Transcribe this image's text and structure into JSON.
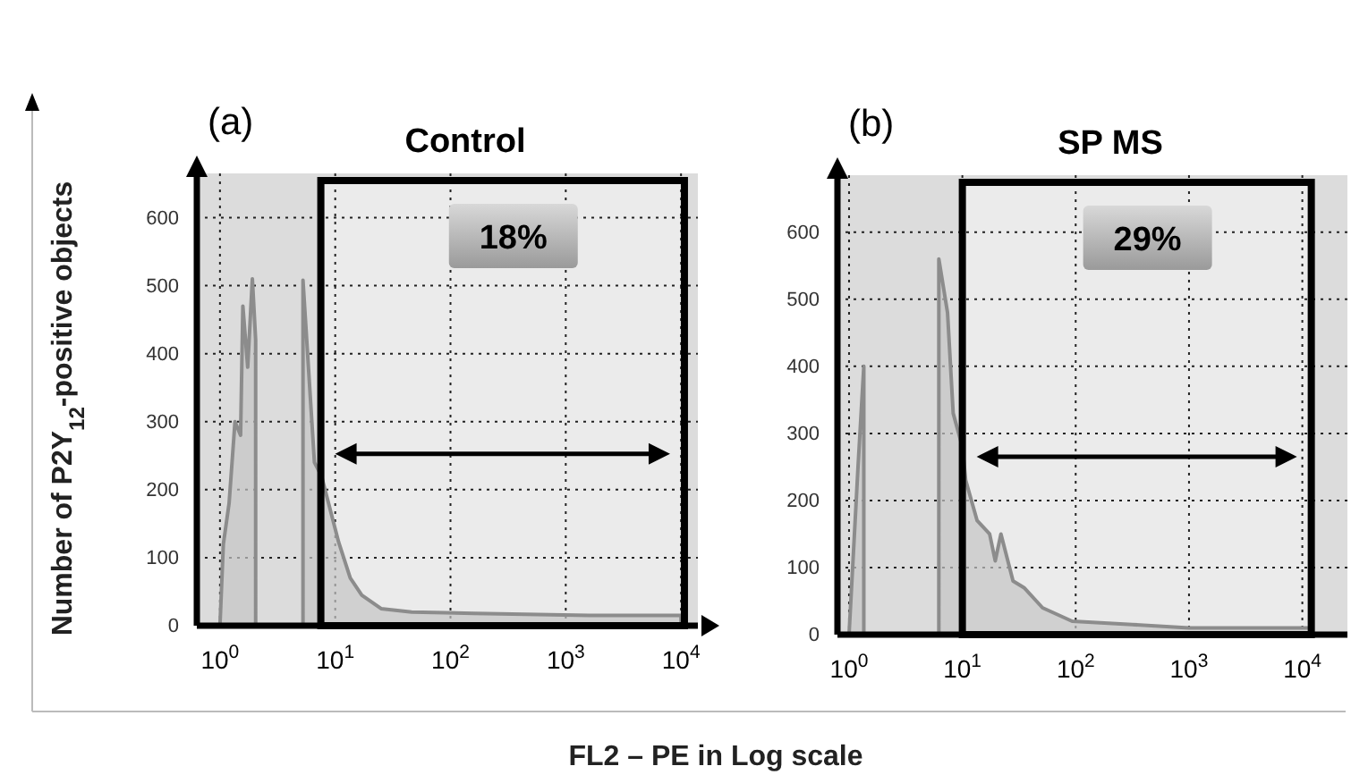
{
  "chart_data": [
    {
      "type": "area",
      "title": "Control",
      "ylabel": "Number of P2Y$_{12}$-positive objects",
      "xlabel": "FL2 – PE in Log scale",
      "annotations": [
        "(a)"
      ],
      "log": "x",
      "grid": true,
      "x": [
        1,
        1.07,
        1.2,
        1.35,
        1.51,
        1.58,
        1.74,
        1.91,
        2.04,
        2.24,
        2.8,
        4.0,
        5.25,
        6.6,
        7.6,
        10.7,
        13.5,
        17,
        25,
        46,
        160,
        1600,
        10000
      ],
      "series": [
        {
          "color": "#8c8c8c",
          "values": [
            0,
            120,
            180,
            300,
            280,
            470,
            380,
            510,
            420,
            null,
            null,
            null,
            508,
            240,
            220,
            123,
            70,
            45,
            25,
            20,
            18,
            15,
            15
          ]
        }
      ],
      "xlim": [
        0.63,
        14000
      ],
      "ylim": [
        0,
        665
      ],
      "xticks": [
        {
          "value": 1,
          "label": "10$^{0}$"
        },
        {
          "value": 10,
          "label": "10$^{1}$"
        },
        {
          "value": 100,
          "label": "10$^{2}$"
        },
        {
          "value": 1000,
          "label": "10$^{3}$"
        },
        {
          "value": 10000,
          "label": "10$^{4}$"
        }
      ],
      "yticks": [
        0,
        100,
        200,
        300,
        400,
        500,
        600
      ],
      "bands": [
        {
          "axis": "x",
          "from": 7.5,
          "to": 10700,
          "label": "18%"
        }
      ]
    },
    {
      "type": "area",
      "title": "SP MS",
      "annotations": [
        "(b)"
      ],
      "log": "x",
      "grid": true,
      "x": [
        1,
        1.2,
        1.35,
        1.51,
        5.75,
        6.2,
        7.4,
        8.3,
        10,
        10.7,
        13.5,
        17.4,
        19.5,
        21.9,
        28,
        35,
        51,
        93,
        316,
        1000,
        12000
      ],
      "series": [
        {
          "color": "#8c8c8c",
          "values": [
            0,
            250,
            400,
            null,
            null,
            560,
            480,
            330,
            280,
            230,
            170,
            150,
            110,
            150,
            80,
            70,
            40,
            20,
            15,
            10,
            10
          ]
        }
      ],
      "xlim": [
        0.79,
        25000
      ],
      "ylim": [
        0,
        685
      ],
      "xticks": [
        {
          "value": 1,
          "label": "10$^{0}$"
        },
        {
          "value": 10,
          "label": "10$^{1}$"
        },
        {
          "value": 100,
          "label": "10$^{2}$"
        },
        {
          "value": 1000,
          "label": "10$^{3}$"
        },
        {
          "value": 10000,
          "label": "10$^{4}$"
        }
      ],
      "yticks": [
        0,
        100,
        200,
        300,
        400,
        500,
        600
      ],
      "bands": [
        {
          "axis": "x",
          "from": 10,
          "to": 12000,
          "label": "29%"
        }
      ]
    }
  ]
}
